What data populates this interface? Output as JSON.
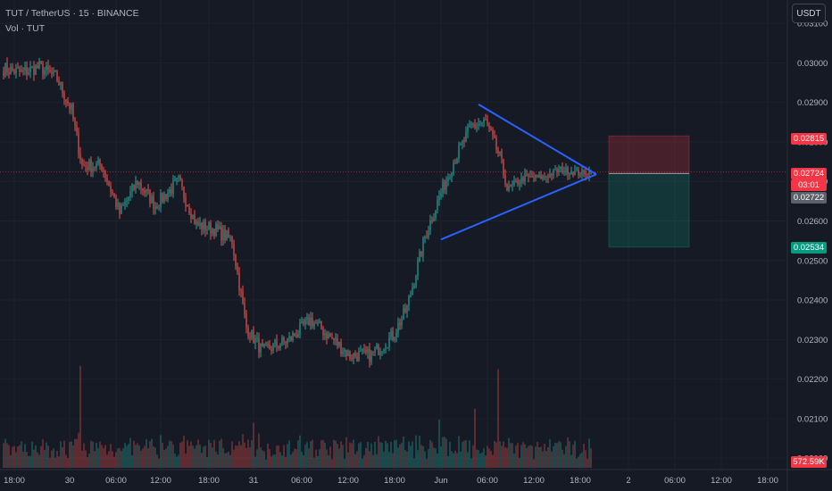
{
  "header": {
    "symbol_line": "TUT / TetherUS · 15 · BINANCE",
    "volume_line": "Vol · TUT"
  },
  "currency_button": "USDT",
  "colors": {
    "background": "#161a25",
    "up": "#26a69a",
    "down": "#ef5350",
    "pattern_line": "#2962ff",
    "grid": "#1e222d",
    "axis_text": "#b2b5be"
  },
  "price_tags": {
    "stop_loss": "0.02815",
    "last_price": "0.02724",
    "countdown": "03:01",
    "prev_close": "0.02722",
    "take_profit": "0.02534",
    "volume": "572.59K"
  },
  "chart_data": {
    "type": "candlestick",
    "y_axis": {
      "range": [
        0.0198,
        0.0315
      ],
      "ticks": [
        "0.03100",
        "0.03000",
        "0.02900",
        "0.02800",
        "0.02700",
        "0.02600",
        "0.02500",
        "0.02400",
        "0.02300",
        "0.02200",
        "0.02100",
        "0.02000"
      ]
    },
    "x_axis": {
      "ticks": [
        "18:00",
        "30",
        "06:00",
        "12:00",
        "18:00",
        "31",
        "06:00",
        "12:00",
        "18:00",
        "Jun",
        "06:00",
        "12:00",
        "18:00",
        "2",
        "06:00",
        "12:00",
        "18:00"
      ]
    },
    "price_path": [
      {
        "bar": 0,
        "price": 0.02985
      },
      {
        "bar": 10,
        "price": 0.02975
      },
      {
        "bar": 20,
        "price": 0.0299
      },
      {
        "bar": 30,
        "price": 0.0296
      },
      {
        "bar": 38,
        "price": 0.0288
      },
      {
        "bar": 44,
        "price": 0.0274
      },
      {
        "bar": 55,
        "price": 0.0274
      },
      {
        "bar": 65,
        "price": 0.0262
      },
      {
        "bar": 75,
        "price": 0.027
      },
      {
        "bar": 85,
        "price": 0.0264
      },
      {
        "bar": 98,
        "price": 0.027
      },
      {
        "bar": 108,
        "price": 0.0259
      },
      {
        "bar": 118,
        "price": 0.0258
      },
      {
        "bar": 128,
        "price": 0.0255
      },
      {
        "bar": 136,
        "price": 0.0233
      },
      {
        "bar": 145,
        "price": 0.0227
      },
      {
        "bar": 160,
        "price": 0.023
      },
      {
        "bar": 172,
        "price": 0.0235
      },
      {
        "bar": 182,
        "price": 0.0231
      },
      {
        "bar": 194,
        "price": 0.0226
      },
      {
        "bar": 206,
        "price": 0.0226
      },
      {
        "bar": 218,
        "price": 0.0231
      },
      {
        "bar": 226,
        "price": 0.0238
      },
      {
        "bar": 236,
        "price": 0.0256
      },
      {
        "bar": 244,
        "price": 0.0266
      },
      {
        "bar": 252,
        "price": 0.0275
      },
      {
        "bar": 262,
        "price": 0.0284
      },
      {
        "bar": 270,
        "price": 0.0285
      },
      {
        "bar": 278,
        "price": 0.0276
      },
      {
        "bar": 282,
        "price": 0.0268
      },
      {
        "bar": 292,
        "price": 0.0271
      },
      {
        "bar": 302,
        "price": 0.0271
      },
      {
        "bar": 312,
        "price": 0.0273
      },
      {
        "bar": 322,
        "price": 0.02722
      },
      {
        "bar": 329,
        "price": 0.02724
      }
    ],
    "volume_spikes": [
      {
        "bar": 43,
        "level": 0.95
      },
      {
        "bar": 277,
        "level": 0.92
      },
      {
        "bar": 264,
        "level": 0.55
      },
      {
        "bar": 244,
        "level": 0.45
      },
      {
        "bar": 140,
        "level": 0.42
      }
    ],
    "triangle_pattern": {
      "upper": [
        {
          "bar": 266,
          "price": 0.02895
        },
        {
          "bar": 332,
          "price": 0.02718
        }
      ],
      "lower": [
        {
          "bar": 245,
          "price": 0.02553
        },
        {
          "bar": 332,
          "price": 0.02718
        }
      ]
    },
    "position": {
      "bar_start": 339,
      "bar_end": 384,
      "entry": 0.0272,
      "stop": 0.02815,
      "target": 0.02534
    }
  }
}
